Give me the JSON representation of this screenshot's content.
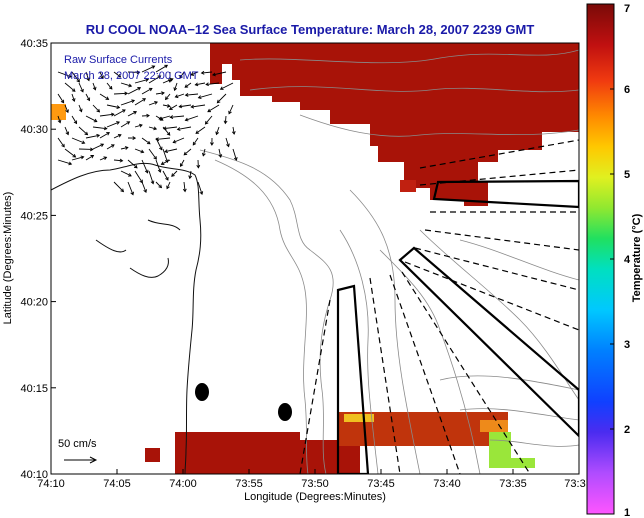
{
  "chart_data": {
    "type": "heatmap",
    "title": "RU COOL  NOAA−12  Sea Surface Temperature:  March 28, 2007 2239 GMT",
    "xlabel": "Longitude (Degrees:Minutes)",
    "ylabel": "Latitude (Degrees:Minutes)",
    "x_ticks": [
      "74:10",
      "74:05",
      "74:00",
      "73:55",
      "73:50",
      "73:45",
      "73:40",
      "73:35",
      "73:3"
    ],
    "y_ticks": [
      "40:35",
      "40:30",
      "40:25",
      "40:20",
      "40:15",
      "40:10"
    ],
    "xlim": [
      -74.1667,
      -73.5
    ],
    "ylim": [
      40.1667,
      40.5833
    ],
    "colorbar": {
      "label": "Temperature (°C)",
      "range": [
        1,
        7
      ],
      "ticks": [
        "1",
        "2",
        "3",
        "4",
        "5",
        "6",
        "7"
      ]
    },
    "overlay_legend": {
      "line1": "Raw Surface Currents",
      "line2": "March 28, 2007 22:00 GMT"
    },
    "vector_scale_label": "50 cm/s",
    "grid": false,
    "colors": {
      "warm": "#a81308",
      "warm_edge": "#c0340c",
      "mid": "#ee8a1a",
      "cool": "#9ae63a",
      "title": "#1a1aa8",
      "land_fill": "#ffffff"
    }
  }
}
